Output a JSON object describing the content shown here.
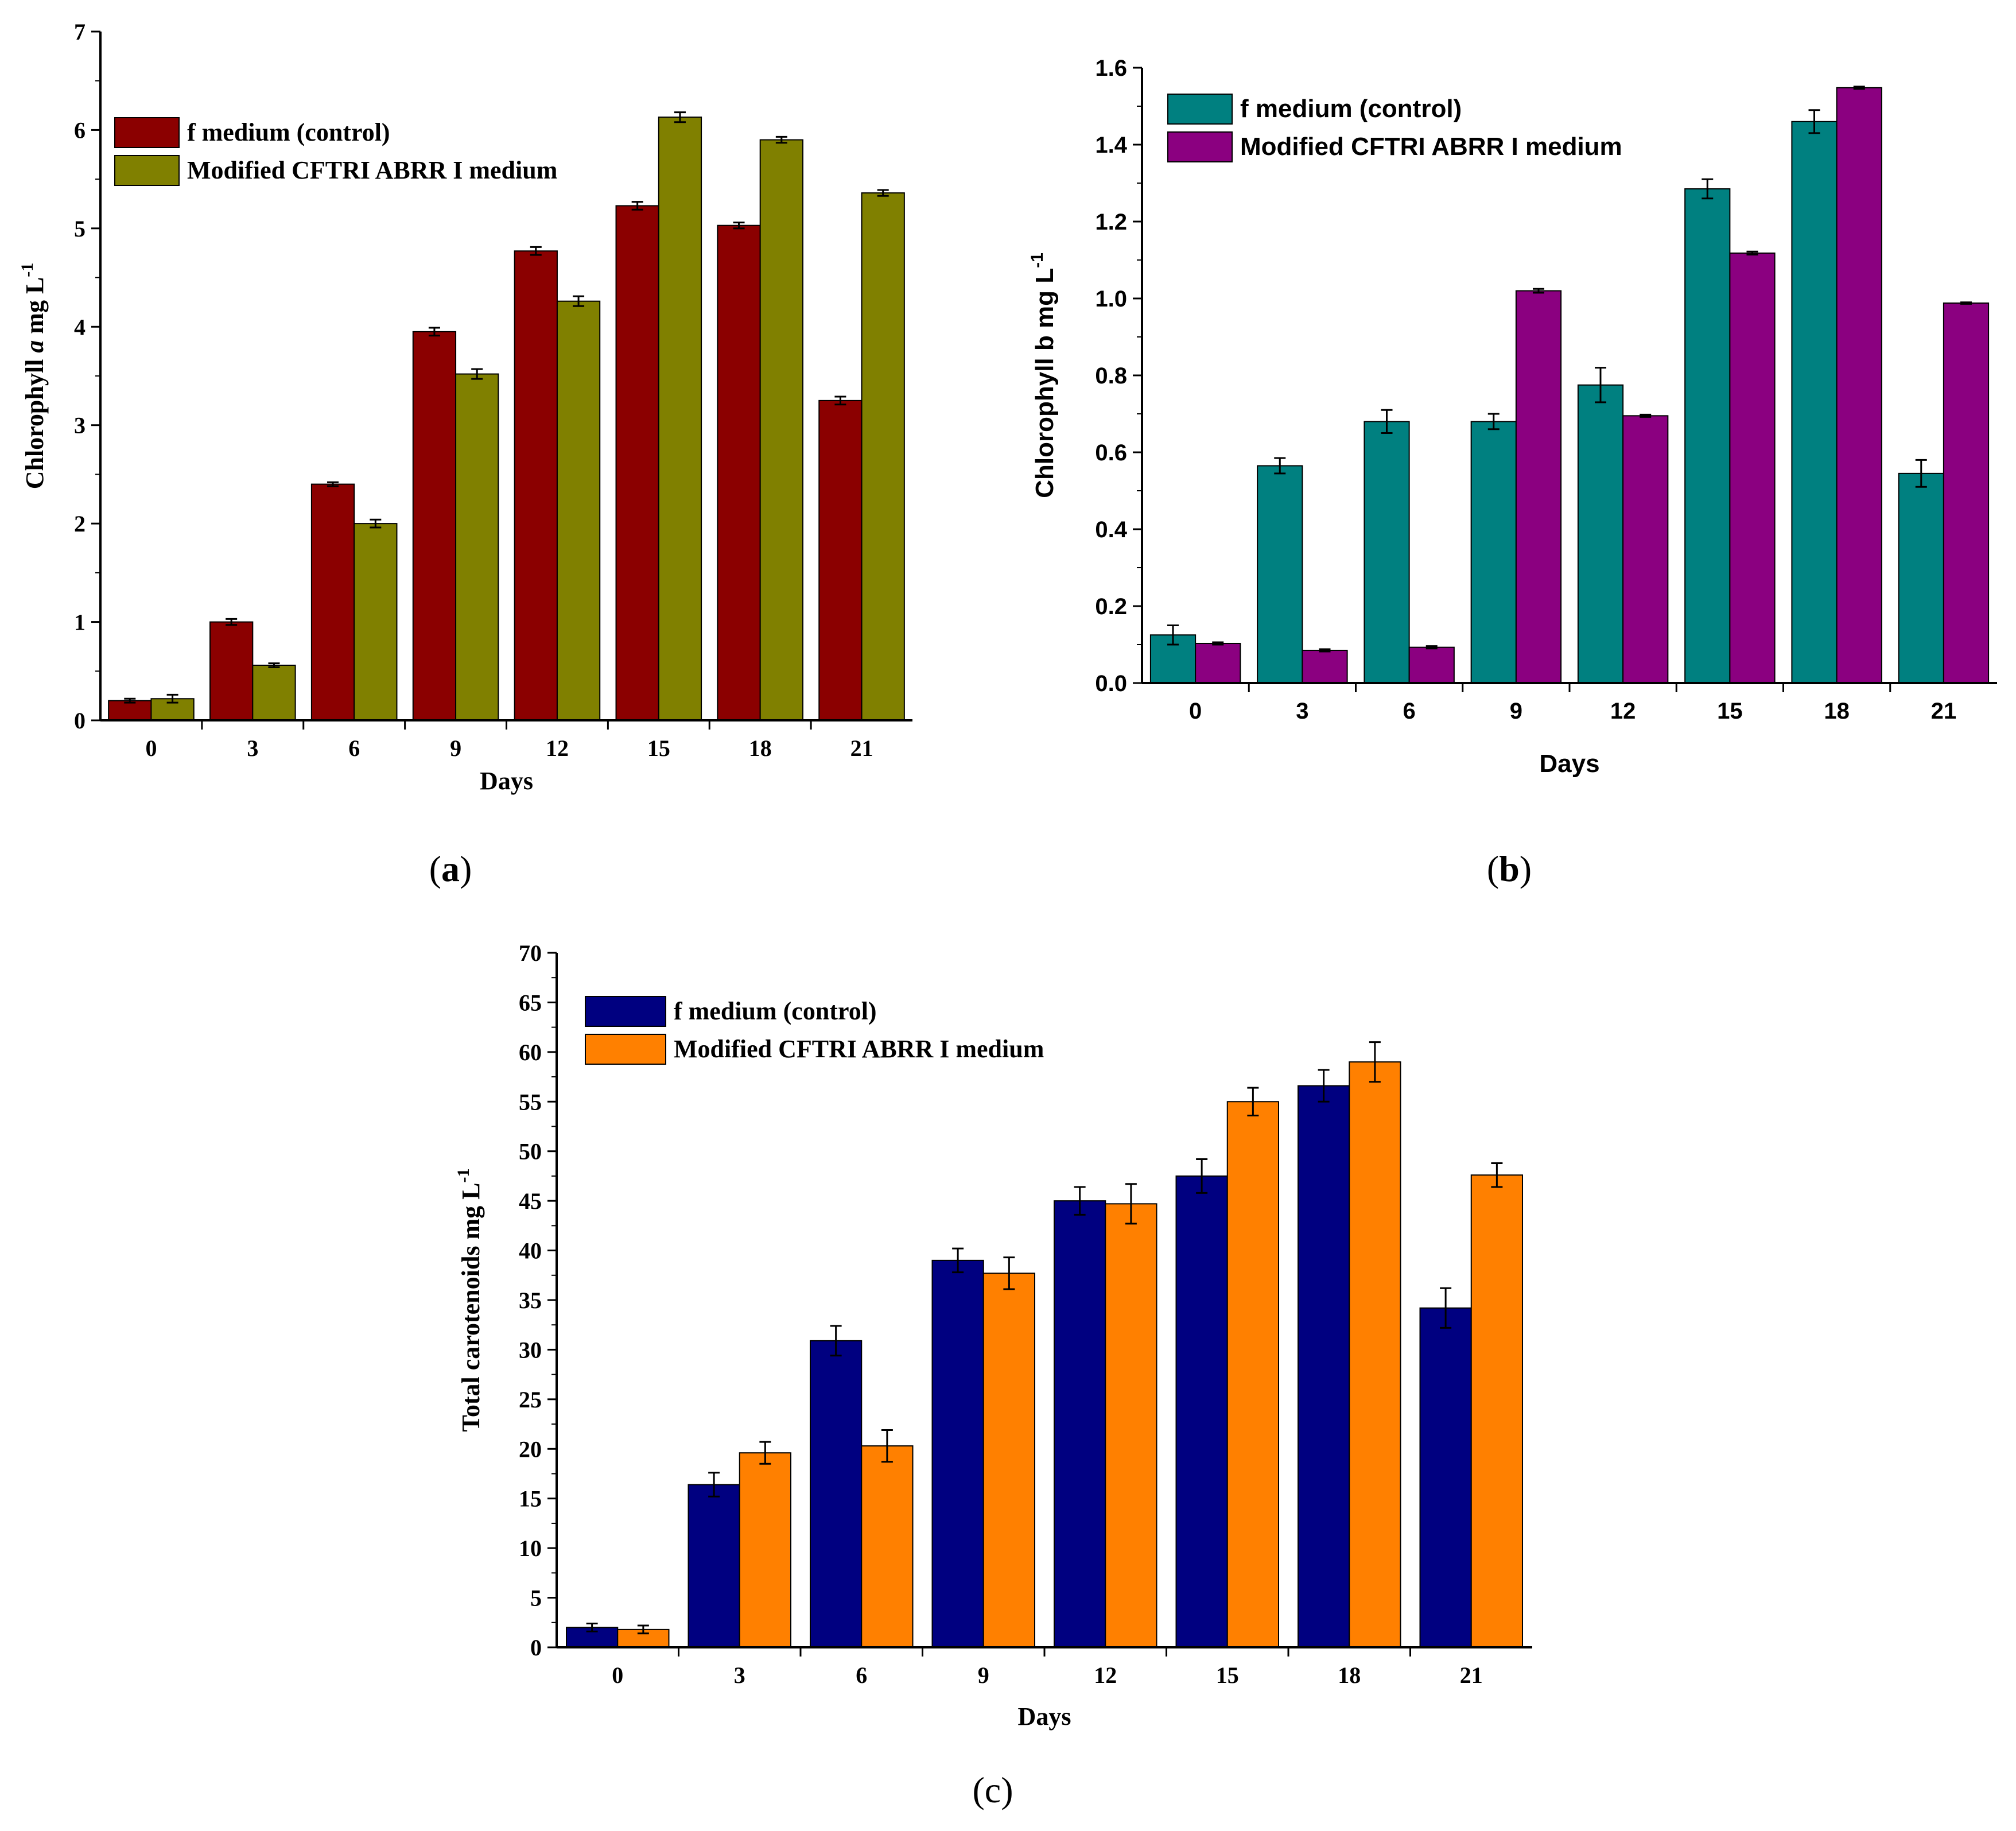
{
  "chart_data": [
    {
      "id": "a",
      "type": "bar",
      "panel_label": "a",
      "title": "",
      "xlabel": "Days",
      "ylabel": "Chlorophyll a mg L",
      "ylabel_parts": {
        "prefix": "Chlorophyll ",
        "italic": "a",
        "suffix": " mg L",
        "superscript": "-1"
      },
      "categories": [
        "0",
        "3",
        "6",
        "9",
        "12",
        "15",
        "18",
        "21"
      ],
      "ylim": [
        0,
        7
      ],
      "yticks": [
        "0",
        "1",
        "2",
        "3",
        "4",
        "5",
        "6",
        "7"
      ],
      "legend_position": "top-left",
      "series": [
        {
          "name": "f medium (control)",
          "color": "#8b0000",
          "values": [
            0.2,
            1.0,
            2.4,
            3.95,
            4.77,
            5.23,
            5.03,
            3.25
          ],
          "errors": [
            0.02,
            0.03,
            0.02,
            0.04,
            0.04,
            0.04,
            0.03,
            0.04
          ]
        },
        {
          "name": "Modified CFTRI ABRR I medium",
          "color": "#808000",
          "values": [
            0.22,
            0.56,
            2.0,
            3.52,
            4.26,
            6.13,
            5.9,
            5.36
          ],
          "errors": [
            0.04,
            0.02,
            0.04,
            0.05,
            0.05,
            0.05,
            0.03,
            0.03
          ]
        }
      ]
    },
    {
      "id": "b",
      "type": "bar",
      "panel_label": "b",
      "title": "",
      "xlabel": "Days",
      "ylabel": "Chlorophyll b mg L",
      "ylabel_parts": {
        "prefix": "Chlorophyll b",
        "italic": "",
        "suffix": " mg L",
        "superscript": "-1"
      },
      "categories": [
        "0",
        "3",
        "6",
        "9",
        "12",
        "15",
        "18",
        "21"
      ],
      "ylim": [
        0,
        1.6
      ],
      "yticks": [
        "0.0",
        "0.2",
        "0.4",
        "0.6",
        "0.8",
        "1.0",
        "1.2",
        "1.4",
        "1.6"
      ],
      "legend_position": "top-left",
      "series": [
        {
          "name": "f medium (control)",
          "color": "#008080",
          "values": [
            0.125,
            0.565,
            0.68,
            0.68,
            0.775,
            1.285,
            1.46,
            0.545
          ],
          "errors": [
            0.025,
            0.02,
            0.03,
            0.02,
            0.045,
            0.025,
            0.03,
            0.035
          ]
        },
        {
          "name": "Modified CFTRI ABRR I medium",
          "color": "#8b0080",
          "values": [
            0.103,
            0.085,
            0.093,
            1.02,
            0.695,
            1.118,
            1.548,
            0.988
          ],
          "errors": [
            0.003,
            0.003,
            0.003,
            0.005,
            0.003,
            0.004,
            0.003,
            0.002
          ]
        }
      ]
    },
    {
      "id": "c",
      "type": "bar",
      "panel_label": "c",
      "title": "",
      "xlabel": "Days",
      "ylabel": "Total carotenoids mg L",
      "ylabel_parts": {
        "prefix": "Total carotenoids mg L",
        "italic": "",
        "suffix": "",
        "superscript": "-1"
      },
      "categories": [
        "0",
        "3",
        "6",
        "9",
        "12",
        "15",
        "18",
        "21"
      ],
      "ylim": [
        0,
        70
      ],
      "yticks": [
        "0",
        "5",
        "10",
        "15",
        "20",
        "25",
        "30",
        "35",
        "40",
        "45",
        "50",
        "55",
        "60",
        "65",
        "70"
      ],
      "legend_position": "top-left",
      "series": [
        {
          "name": "f medium (control)",
          "color": "#000080",
          "values": [
            2.0,
            16.4,
            30.9,
            39.0,
            45.0,
            47.5,
            56.6,
            34.2
          ],
          "errors": [
            0.4,
            1.2,
            1.5,
            1.2,
            1.4,
            1.7,
            1.6,
            2.0
          ]
        },
        {
          "name": "Modified CFTRI ABRR I medium",
          "color": "#ff8000",
          "values": [
            1.8,
            19.6,
            20.3,
            37.7,
            44.7,
            55.0,
            59.0,
            47.6
          ],
          "errors": [
            0.4,
            1.1,
            1.6,
            1.6,
            2.0,
            1.4,
            2.0,
            1.2
          ]
        }
      ]
    }
  ]
}
